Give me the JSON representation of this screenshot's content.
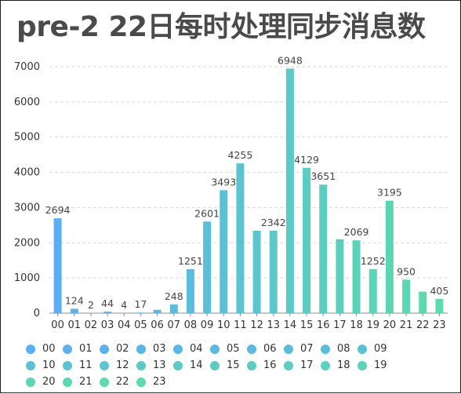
{
  "title": "pre-2 22日每时处理同步消息数",
  "colors": {
    "bar_start": "#5aaef3",
    "bar_end": "#5bdcab",
    "grid": "#d9d9d9",
    "axis": "#8c8c8c",
    "text": "#333333"
  },
  "chart_data": {
    "type": "bar",
    "title": "pre-2 22日每时处理同步消息数",
    "categories": [
      "00",
      "01",
      "02",
      "03",
      "04",
      "05",
      "06",
      "07",
      "08",
      "09",
      "10",
      "11",
      "12",
      "13",
      "14",
      "15",
      "16",
      "17",
      "18",
      "19",
      "20",
      "21",
      "22",
      "23"
    ],
    "values": [
      2694,
      124,
      2,
      44,
      4,
      17,
      95,
      248,
      1251,
      2601,
      3493,
      4255,
      2342,
      2342,
      6948,
      4129,
      3651,
      2100,
      2069,
      1252,
      3195,
      950,
      610,
      405
    ],
    "data_labels": [
      "2694",
      "124",
      "2",
      "44",
      "4",
      "17",
      "",
      "248",
      "1251",
      "2601",
      "3493",
      "4255",
      "",
      "2342",
      "6948",
      "4129",
      "3651",
      "",
      "2069",
      "1252",
      "3195",
      "950",
      "",
      "405"
    ],
    "yticks": [
      "0",
      "1000",
      "2000",
      "3000",
      "4000",
      "5000",
      "6000",
      "7000"
    ],
    "ylim": [
      0,
      7000
    ],
    "grid": true,
    "legend": {
      "position": "bottom",
      "entries": [
        "00",
        "01",
        "02",
        "03",
        "04",
        "05",
        "06",
        "07",
        "08",
        "09",
        "10",
        "11",
        "12",
        "13",
        "14",
        "15",
        "16",
        "17",
        "18",
        "19",
        "20",
        "21",
        "22",
        "23"
      ]
    }
  }
}
